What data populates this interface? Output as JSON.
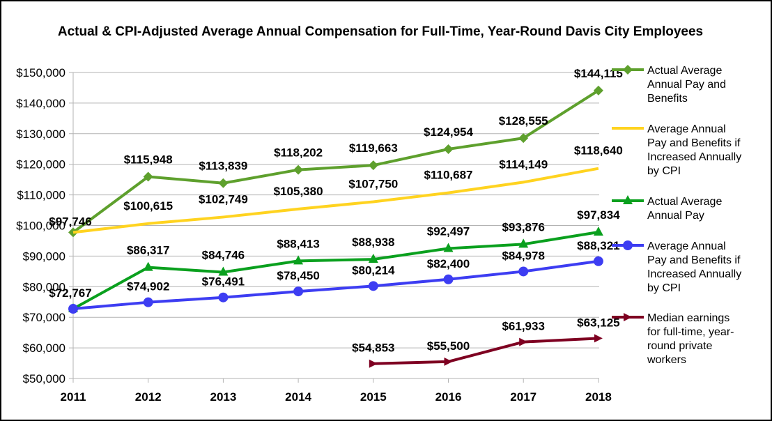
{
  "chart_data": {
    "type": "line",
    "title": "Actual & CPI-Adjusted Average Annual Compensation for Full-Time, Year-Round Davis City Employees",
    "xlabel": "",
    "ylabel": "",
    "categories": [
      "2011",
      "2012",
      "2013",
      "2014",
      "2015",
      "2016",
      "2017",
      "2018"
    ],
    "ylim": [
      50000,
      150000
    ],
    "yticks": [
      50000,
      60000,
      70000,
      80000,
      90000,
      100000,
      110000,
      120000,
      130000,
      140000,
      150000
    ],
    "ytick_labels": [
      "$50,000",
      "$60,000",
      "$70,000",
      "$80,000",
      "$90,000",
      "$100,000",
      "$110,000",
      "$120,000",
      "$130,000",
      "$140,000",
      "$150,000"
    ],
    "grid": "horizontal",
    "legend_position": "right",
    "series": [
      {
        "name": "Actual Average Annual Pay and Benefits",
        "legend_lines": [
          "Actual Average",
          "Annual Pay and",
          "Benefits"
        ],
        "color": "#5ea02d",
        "marker": "diamond",
        "values": [
          97746,
          115948,
          113839,
          118202,
          119663,
          124954,
          128555,
          144115
        ],
        "labels": [
          "$97,746",
          "$115,948",
          "$113,839",
          "$118,202",
          "$119,663",
          "$124,954",
          "$128,555",
          "$144,115"
        ]
      },
      {
        "name": "Average Annual Pay and Benefits if Increased Annually by CPI",
        "legend_lines": [
          "Average Annual",
          "Pay and Benefits if",
          "Increased Annually",
          "by CPI"
        ],
        "color": "#ffd320",
        "marker": "none",
        "values": [
          97746,
          100615,
          102749,
          105380,
          107750,
          110687,
          114149,
          118640
        ],
        "labels": [
          null,
          "$100,615",
          "$102,749",
          "$105,380",
          "$107,750",
          "$110,687",
          "$114,149",
          "$118,640"
        ]
      },
      {
        "name": "Actual Average Annual Pay",
        "legend_lines": [
          "Actual Average",
          "Annual Pay"
        ],
        "color": "#0aa01e",
        "marker": "triangle",
        "values": [
          72767,
          86317,
          84746,
          88413,
          88938,
          92497,
          93876,
          97834
        ],
        "labels": [
          "$72,767",
          "$86,317",
          "$84,746",
          "$88,413",
          "$88,938",
          "$92,497",
          "$93,876",
          "$97,834"
        ]
      },
      {
        "name": "Average Annual Pay and Benefits if Increased Annually by CPI",
        "legend_lines": [
          "Average Annual",
          "Pay and Benefits if",
          "Increased Annually",
          "by CPI"
        ],
        "color": "#3d3df2",
        "marker": "circle",
        "values": [
          72767,
          74902,
          76491,
          78450,
          80214,
          82400,
          84978,
          88321
        ],
        "labels": [
          null,
          "$74,902",
          "$76,491",
          "$78,450",
          "$80,214",
          "$82,400",
          "$84,978",
          "$88,321"
        ]
      },
      {
        "name": "Median earnings for full-time, year-round private workers",
        "legend_lines": [
          "Median earnings",
          "for full-time, year-",
          "round private",
          "workers"
        ],
        "color": "#7e0021",
        "marker": "arrow",
        "values": [
          null,
          null,
          null,
          null,
          54853,
          55500,
          61933,
          63125
        ],
        "labels": [
          null,
          null,
          null,
          null,
          "$54,853",
          "$55,500",
          "$61,933",
          "$63,125"
        ]
      }
    ]
  }
}
